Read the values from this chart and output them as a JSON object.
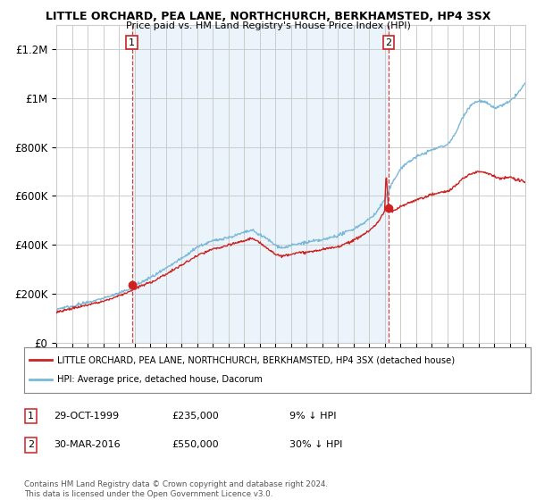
{
  "title": "LITTLE ORCHARD, PEA LANE, NORTHCHURCH, BERKHAMSTED, HP4 3SX",
  "subtitle": "Price paid vs. HM Land Registry's House Price Index (HPI)",
  "ylim": [
    0,
    1300000
  ],
  "yticks": [
    0,
    200000,
    400000,
    600000,
    800000,
    1000000,
    1200000
  ],
  "ytick_labels": [
    "£0",
    "£200K",
    "£400K",
    "£600K",
    "£800K",
    "£1M",
    "£1.2M"
  ],
  "x_start_year": 1995,
  "x_end_year": 2025,
  "sale1_date": 1999.83,
  "sale1_price": 235000,
  "sale2_date": 2016.25,
  "sale2_price": 550000,
  "hpi_color": "#7ab8d9",
  "hpi_fill_color": "#ddeef7",
  "price_color": "#cc2222",
  "sale_marker_color": "#cc2222",
  "vline_color": "#cc2222",
  "grid_color": "#cccccc",
  "background_color": "#ffffff",
  "legend_label_price": "LITTLE ORCHARD, PEA LANE, NORTHCHURCH, BERKHAMSTED, HP4 3SX (detached house)",
  "legend_label_hpi": "HPI: Average price, detached house, Dacorum",
  "footnote": "Contains HM Land Registry data © Crown copyright and database right 2024.\nThis data is licensed under the Open Government Licence v3.0.",
  "table_rows": [
    {
      "num": "1",
      "date": "29-OCT-1999",
      "price": "£235,000",
      "note": "9% ↓ HPI"
    },
    {
      "num": "2",
      "date": "30-MAR-2016",
      "price": "£550,000",
      "note": "30% ↓ HPI"
    }
  ],
  "hpi_keypoints_x": [
    1995,
    1996,
    1997,
    1998,
    1999,
    2000,
    2001,
    2002,
    2003,
    2004,
    2005,
    2006,
    2007,
    2007.5,
    2008,
    2008.5,
    2009,
    2009.5,
    2010,
    2011,
    2012,
    2013,
    2014,
    2015,
    2015.5,
    2016,
    2016.5,
    2017,
    2017.5,
    2018,
    2019,
    2020,
    2020.5,
    2021,
    2021.5,
    2022,
    2022.5,
    2023,
    2023.5,
    2024,
    2024.5,
    2025
  ],
  "hpi_keypoints_y": [
    135000,
    150000,
    168000,
    185000,
    205000,
    235000,
    270000,
    305000,
    345000,
    390000,
    415000,
    430000,
    450000,
    460000,
    440000,
    420000,
    395000,
    385000,
    395000,
    405000,
    415000,
    430000,
    460000,
    500000,
    530000,
    580000,
    650000,
    710000,
    740000,
    760000,
    790000,
    810000,
    850000,
    920000,
    970000,
    990000,
    980000,
    960000,
    970000,
    985000,
    1020000,
    1060000
  ],
  "price_keypoints_x": [
    1995,
    1996,
    1997,
    1998,
    1999,
    2000,
    2001,
    2002,
    2003,
    2004,
    2005,
    2006,
    2007,
    2007.5,
    2008,
    2008.5,
    2009,
    2009.5,
    2010,
    2011,
    2012,
    2013,
    2014,
    2015,
    2015.5,
    2016,
    2016.1,
    2016.25,
    2016.3,
    2016.5,
    2017,
    2017.5,
    2018,
    2019,
    2020,
    2020.5,
    2021,
    2021.5,
    2022,
    2022.5,
    2023,
    2023.5,
    2024,
    2024.5,
    2025
  ],
  "price_keypoints_y": [
    125000,
    140000,
    155000,
    170000,
    190000,
    215000,
    245000,
    278000,
    315000,
    355000,
    380000,
    395000,
    415000,
    425000,
    405000,
    385000,
    360000,
    352000,
    362000,
    370000,
    380000,
    395000,
    420000,
    460000,
    488000,
    540000,
    700000,
    550000,
    545000,
    540000,
    560000,
    575000,
    590000,
    610000,
    620000,
    640000,
    670000,
    690000,
    700000,
    695000,
    680000,
    670000,
    680000,
    665000,
    660000
  ]
}
